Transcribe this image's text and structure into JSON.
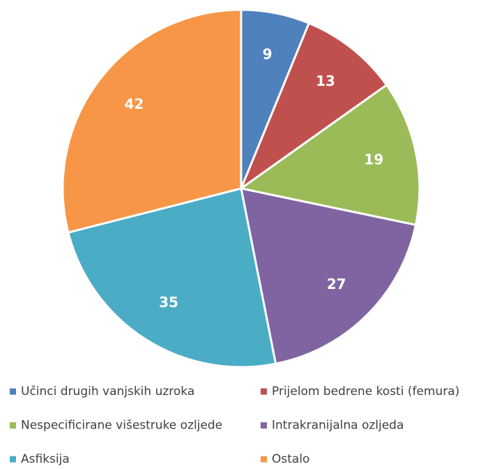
{
  "chart_data": {
    "type": "pie",
    "categories": [
      "Učinci drugih vanjskih uzroka",
      "Prijelom bedrene kosti (femura)",
      "Nespecificirane višestruke ozljede",
      "Intrakranijalna ozljeda",
      "Asfiksija",
      "Ostalo"
    ],
    "values": [
      9,
      13,
      19,
      27,
      35,
      42
    ],
    "colors": [
      "#4f81bd",
      "#c0504d",
      "#9bbb59",
      "#8064a2",
      "#4bacc6",
      "#f79646"
    ],
    "legend": "bottom"
  }
}
